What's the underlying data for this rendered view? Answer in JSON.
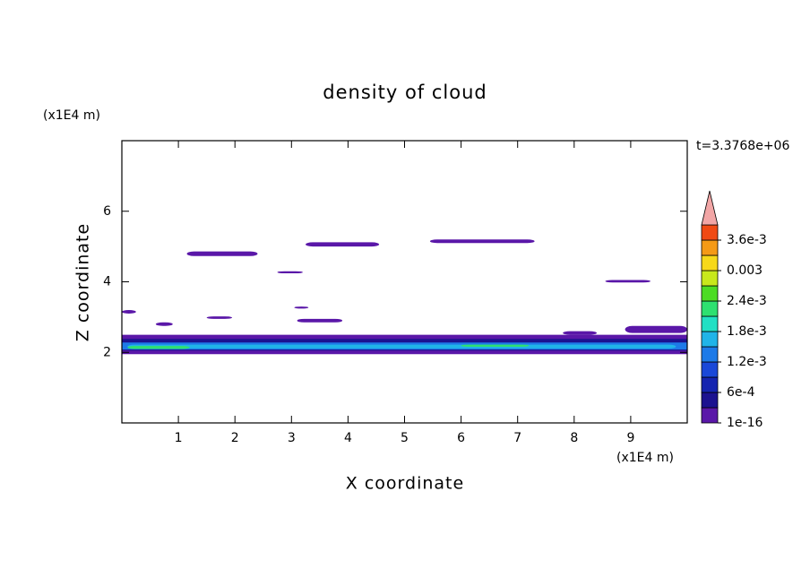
{
  "chart_data": {
    "type": "contour",
    "title": "density of cloud",
    "xlabel": "X coordinate",
    "ylabel": "Z coordinate",
    "xunit": "(x1E4 m)",
    "yunit": "(x1E4 m)",
    "time_label": "t=3.3768e+06",
    "xlim": [
      0,
      10
    ],
    "ylim": [
      0,
      8
    ],
    "xticks": [
      1,
      2,
      3,
      4,
      5,
      6,
      7,
      8,
      9
    ],
    "yticks": [
      2,
      4,
      6
    ],
    "colorbar": {
      "levels": [
        1e-16,
        0.0003,
        0.0006,
        0.0009,
        0.0012,
        0.0015,
        0.0018,
        0.0021,
        0.0024,
        0.0027,
        0.003,
        0.0033,
        0.0036,
        0.0039
      ],
      "colors": [
        "#5a17a8",
        "#1c1290",
        "#1524b0",
        "#1a48d8",
        "#1d7ae8",
        "#20b4e8",
        "#22e0c4",
        "#2ee070",
        "#4cdc24",
        "#c8e81c",
        "#f7d91a",
        "#f59a16",
        "#f04a14"
      ],
      "extend_color": "#f2a6a6",
      "ticks": [
        {
          "value": 1e-16,
          "label": "1e-16"
        },
        {
          "value": 0.0006,
          "label": "6e-4"
        },
        {
          "value": 0.0012,
          "label": "1.2e-3"
        },
        {
          "value": 0.0018,
          "label": "1.8e-3"
        },
        {
          "value": 0.0024,
          "label": "2.4e-3"
        },
        0.003,
        {
          "value": 0.0036,
          "label": "3.6e-3"
        }
      ]
    },
    "regions": [
      {
        "x": [
          0,
          10
        ],
        "z": [
          1.95,
          2.5
        ],
        "value": 1e-16
      },
      {
        "x": [
          0,
          10
        ],
        "z": [
          2.05,
          2.38
        ],
        "value": 0.0003
      },
      {
        "x": [
          0,
          10
        ],
        "z": [
          2.08,
          2.28
        ],
        "value": 0.0012
      },
      {
        "x": [
          0.1,
          9.8
        ],
        "z": [
          2.11,
          2.22
        ],
        "value": 0.0015
      },
      {
        "x": [
          0.1,
          1.2
        ],
        "z": [
          2.1,
          2.18
        ],
        "value": 0.0021
      },
      {
        "x": [
          6.0,
          7.2
        ],
        "z": [
          2.16,
          2.22
        ],
        "value": 0.0021
      },
      {
        "x": [
          1.15,
          2.4
        ],
        "z": [
          4.73,
          4.86
        ],
        "value": 1e-16
      },
      {
        "x": [
          3.25,
          4.55
        ],
        "z": [
          5.0,
          5.12
        ],
        "value": 1e-16
      },
      {
        "x": [
          5.45,
          7.3
        ],
        "z": [
          5.1,
          5.2
        ],
        "value": 1e-16
      },
      {
        "x": [
          2.75,
          3.2
        ],
        "z": [
          4.24,
          4.3
        ],
        "value": 1e-16
      },
      {
        "x": [
          8.55,
          9.35
        ],
        "z": [
          3.98,
          4.05
        ],
        "value": 1e-16
      },
      {
        "x": [
          3.05,
          3.3
        ],
        "z": [
          3.24,
          3.3
        ],
        "value": 1e-16
      },
      {
        "x": [
          3.1,
          3.9
        ],
        "z": [
          2.85,
          2.95
        ],
        "value": 1e-16
      },
      {
        "x": [
          0,
          0.25
        ],
        "z": [
          3.1,
          3.2
        ],
        "value": 1e-16
      },
      {
        "x": [
          1.5,
          1.95
        ],
        "z": [
          2.95,
          3.02
        ],
        "value": 1e-16
      },
      {
        "x": [
          0.6,
          0.9
        ],
        "z": [
          2.75,
          2.85
        ],
        "value": 1e-16
      },
      {
        "x": [
          8.9,
          10
        ],
        "z": [
          2.55,
          2.75
        ],
        "value": 1e-16
      },
      {
        "x": [
          7.8,
          8.4
        ],
        "z": [
          2.5,
          2.6
        ],
        "value": 1e-16
      }
    ]
  }
}
